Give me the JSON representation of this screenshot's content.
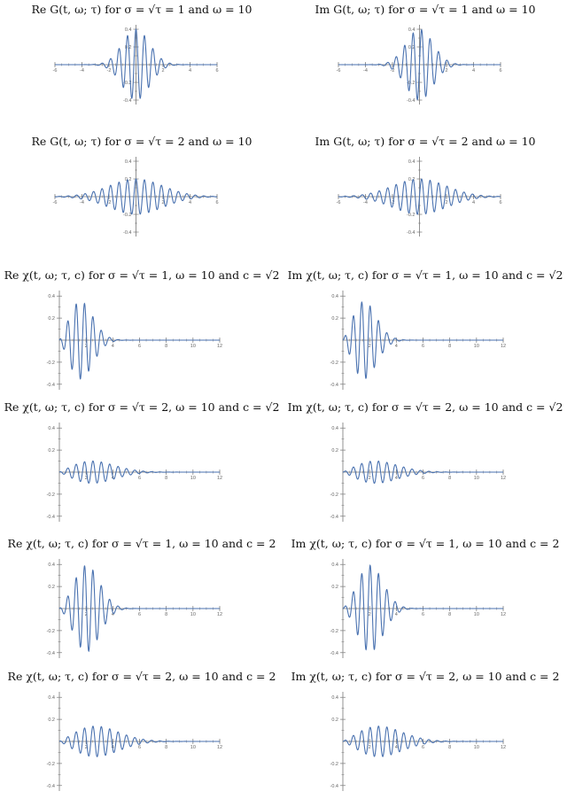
{
  "charts": [
    {
      "title": "Re G(t, ω;  τ)  for  σ = √τ = 1  and  ω = 10",
      "chart_data": {
        "type": "line",
        "series": [
          {
            "values_function": "exp(-t^2/(2*sigma^2))*cos(omega*t)/(sqrt(2*pi)*sigma)"
          }
        ],
        "params": {
          "sigma": 1,
          "tau": 1,
          "omega": 10
        },
        "xlim": [
          -6,
          6
        ],
        "ylim": [
          -0.45,
          0.45
        ],
        "x_ticks": [
          -6,
          -4,
          -2,
          2,
          4,
          6
        ],
        "y_ticks": [
          -0.4,
          -0.2,
          0.2,
          0.4
        ]
      }
    },
    {
      "title": "Im G(t, ω;  τ)  for  σ = √τ = 1  and  ω = 10",
      "chart_data": {
        "type": "line",
        "series": [
          {
            "values_function": "exp(-t^2/(2*sigma^2))*sin(omega*t)/(sqrt(2*pi)*sigma)"
          }
        ],
        "params": {
          "sigma": 1,
          "tau": 1,
          "omega": 10
        },
        "xlim": [
          -6,
          6
        ],
        "ylim": [
          -0.45,
          0.45
        ],
        "x_ticks": [
          -6,
          -4,
          -2,
          2,
          4,
          6
        ],
        "y_ticks": [
          -0.4,
          -0.2,
          0.2,
          0.4
        ]
      }
    },
    {
      "title": "Re G(t, ω;  τ)  for  σ = √τ = 2  and  ω = 10",
      "chart_data": {
        "type": "line",
        "series": [
          {
            "values_function": "exp(-t^2/(2*sigma^2))*cos(omega*t)/(sqrt(2*pi)*sigma)"
          }
        ],
        "params": {
          "sigma": 2,
          "tau": 4,
          "omega": 10
        },
        "xlim": [
          -6,
          6
        ],
        "ylim": [
          -0.45,
          0.45
        ],
        "x_ticks": [
          -6,
          -4,
          -2,
          2,
          4,
          6
        ],
        "y_ticks": [
          -0.4,
          -0.2,
          0.2,
          0.4
        ]
      }
    },
    {
      "title": "Im G(t, ω;  τ)  for  σ = √τ = 2  and  ω = 10",
      "chart_data": {
        "type": "line",
        "series": [
          {
            "values_function": "exp(-t^2/(2*sigma^2))*sin(omega*t)/(sqrt(2*pi)*sigma)"
          }
        ],
        "params": {
          "sigma": 2,
          "tau": 4,
          "omega": 10
        },
        "xlim": [
          -6,
          6
        ],
        "ylim": [
          -0.45,
          0.45
        ],
        "x_ticks": [
          -6,
          -4,
          -2,
          2,
          4,
          6
        ],
        "y_ticks": [
          -0.4,
          -0.2,
          0.2,
          0.4
        ]
      }
    },
    {
      "title": "Re χ(t, ω;  τ, c)  for  σ = √τ = 1,  ω = 10  and  c = √2",
      "chart_data": {
        "type": "line",
        "series": [
          {
            "values_function": "exp(-(t-c)^2/(2*sigma^2))*cos(omega*t)/(sqrt(2*pi)*sigma) - exp(-(c^2+t^2)/(2*sigma^2))*cos(omega*t)/(sqrt(2*pi)*sigma)"
          }
        ],
        "params": {
          "sigma": 1,
          "tau": 1,
          "omega": 10,
          "c": 1.4142
        },
        "xlim": [
          0,
          12
        ],
        "ylim": [
          -0.45,
          0.45
        ],
        "x_ticks": [
          2,
          4,
          6,
          8,
          10,
          12
        ],
        "y_ticks": [
          -0.4,
          -0.2,
          0.2,
          0.4
        ]
      }
    },
    {
      "title": "Im χ(t, ω;  τ, c)  for  σ = √τ = 1,  ω = 10  and  c = √2",
      "chart_data": {
        "type": "line",
        "series": [
          {
            "values_function": "exp(-(t-c)^2/(2*sigma^2))*sin(omega*t)/(sqrt(2*pi)*sigma) - exp(-(c^2+t^2)/(2*sigma^2))*sin(omega*t)/(sqrt(2*pi)*sigma)"
          }
        ],
        "params": {
          "sigma": 1,
          "tau": 1,
          "omega": 10,
          "c": 1.4142
        },
        "xlim": [
          0,
          12
        ],
        "ylim": [
          -0.45,
          0.45
        ],
        "x_ticks": [
          2,
          4,
          6,
          8,
          10,
          12
        ],
        "y_ticks": [
          -0.4,
          -0.2,
          0.2,
          0.4
        ]
      }
    },
    {
      "title": "Re χ(t, ω;  τ, c)  for  σ = √τ = 2,  ω = 10  and  c = √2",
      "chart_data": {
        "type": "line",
        "series": [
          {
            "values_function": "exp(-(t-c)^2/(2*sigma^2))*cos(omega*t)/(sqrt(2*pi)*sigma) - exp(-(c^2+t^2)/(2*sigma^2))*cos(omega*t)/(sqrt(2*pi)*sigma)"
          }
        ],
        "params": {
          "sigma": 2,
          "tau": 4,
          "omega": 10,
          "c": 1.4142
        },
        "xlim": [
          0,
          12
        ],
        "ylim": [
          -0.45,
          0.45
        ],
        "x_ticks": [
          2,
          4,
          6,
          8,
          10,
          12
        ],
        "y_ticks": [
          -0.4,
          -0.2,
          0.2,
          0.4
        ]
      }
    },
    {
      "title": "Im χ(t, ω;  τ, c)  for  σ = √τ = 2,  ω = 10  and  c = √2",
      "chart_data": {
        "type": "line",
        "series": [
          {
            "values_function": "exp(-(t-c)^2/(2*sigma^2))*sin(omega*t)/(sqrt(2*pi)*sigma) - exp(-(c^2+t^2)/(2*sigma^2))*sin(omega*t)/(sqrt(2*pi)*sigma)"
          }
        ],
        "params": {
          "sigma": 2,
          "tau": 4,
          "omega": 10,
          "c": 1.4142
        },
        "xlim": [
          0,
          12
        ],
        "ylim": [
          -0.45,
          0.45
        ],
        "x_ticks": [
          2,
          4,
          6,
          8,
          10,
          12
        ],
        "y_ticks": [
          -0.4,
          -0.2,
          0.2,
          0.4
        ]
      }
    },
    {
      "title": "Re χ(t, ω;  τ, c)  for  σ = √τ = 1,  ω = 10  and  c = 2",
      "chart_data": {
        "type": "line",
        "series": [
          {
            "values_function": "exp(-(t-c)^2/(2*sigma^2))*cos(omega*t)/(sqrt(2*pi)*sigma) - exp(-(c^2+t^2)/(2*sigma^2))*cos(omega*t)/(sqrt(2*pi)*sigma)"
          }
        ],
        "params": {
          "sigma": 1,
          "tau": 1,
          "omega": 10,
          "c": 2
        },
        "xlim": [
          0,
          12
        ],
        "ylim": [
          -0.45,
          0.45
        ],
        "x_ticks": [
          2,
          4,
          6,
          8,
          10,
          12
        ],
        "y_ticks": [
          -0.4,
          -0.2,
          0.2,
          0.4
        ]
      }
    },
    {
      "title": "Im χ(t, ω;  τ, c)  for  σ = √τ = 1,  ω = 10  and  c = 2",
      "chart_data": {
        "type": "line",
        "series": [
          {
            "values_function": "exp(-(t-c)^2/(2*sigma^2))*sin(omega*t)/(sqrt(2*pi)*sigma) - exp(-(c^2+t^2)/(2*sigma^2))*sin(omega*t)/(sqrt(2*pi)*sigma)"
          }
        ],
        "params": {
          "sigma": 1,
          "tau": 1,
          "omega": 10,
          "c": 2
        },
        "xlim": [
          0,
          12
        ],
        "ylim": [
          -0.45,
          0.45
        ],
        "x_ticks": [
          2,
          4,
          6,
          8,
          10,
          12
        ],
        "y_ticks": [
          -0.4,
          -0.2,
          0.2,
          0.4
        ]
      }
    },
    {
      "title": "Re χ(t, ω;  τ, c)  for  σ = √τ = 2,  ω = 10  and  c = 2",
      "chart_data": {
        "type": "line",
        "series": [
          {
            "values_function": "exp(-(t-c)^2/(2*sigma^2))*cos(omega*t)/(sqrt(2*pi)*sigma) - exp(-(c^2+t^2)/(2*sigma^2))*cos(omega*t)/(sqrt(2*pi)*sigma)"
          }
        ],
        "params": {
          "sigma": 2,
          "tau": 4,
          "omega": 10,
          "c": 2
        },
        "xlim": [
          0,
          12
        ],
        "ylim": [
          -0.45,
          0.45
        ],
        "x_ticks": [
          2,
          4,
          6,
          8,
          10,
          12
        ],
        "y_ticks": [
          -0.4,
          -0.2,
          0.2,
          0.4
        ]
      }
    },
    {
      "title": "Im χ(t, ω;  τ, c)  for  σ = √τ = 2,  ω = 10  and  c = 2",
      "chart_data": {
        "type": "line",
        "series": [
          {
            "values_function": "exp(-(t-c)^2/(2*sigma^2))*sin(omega*t)/(sqrt(2*pi)*sigma) - exp(-(c^2+t^2)/(2*sigma^2))*sin(omega*t)/(sqrt(2*pi)*sigma)"
          }
        ],
        "params": {
          "sigma": 2,
          "tau": 4,
          "omega": 10,
          "c": 2
        },
        "xlim": [
          0,
          12
        ],
        "ylim": [
          -0.45,
          0.45
        ],
        "x_ticks": [
          2,
          4,
          6,
          8,
          10,
          12
        ],
        "y_ticks": [
          -0.4,
          -0.2,
          0.2,
          0.4
        ]
      }
    }
  ],
  "colors": {
    "curve": "#4a72b0",
    "axis": "#777777",
    "tick_label": "#666666"
  }
}
